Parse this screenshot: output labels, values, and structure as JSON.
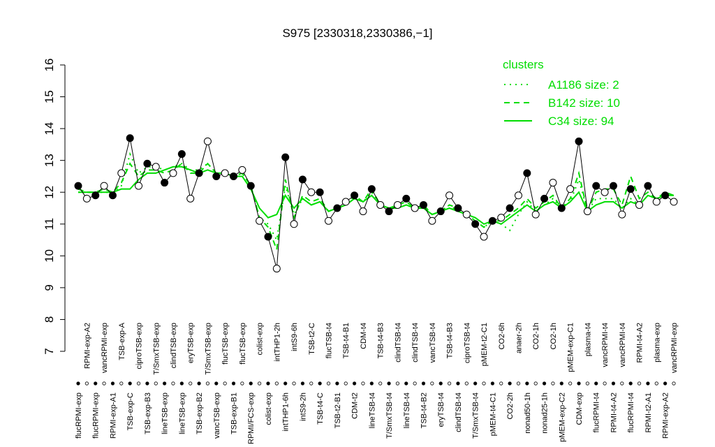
{
  "chart_data": {
    "type": "line",
    "title": "S975 [2330318,2330386,−1]",
    "legend_title": "clusters",
    "legend_position": "top-right",
    "ylim": [
      7,
      16
    ],
    "yticks": [
      7,
      8,
      9,
      10,
      11,
      12,
      13,
      14,
      15,
      16
    ],
    "color": "#000000",
    "categories": [
      "flucRPMI-exp",
      "RPMI-exp-A2",
      "flucRPMI-exp",
      "vancRPMI-exp",
      "RPMI-exp-A1",
      "TSB-exp-A",
      "TSB-exp-C",
      "ciproTSB-exp",
      "TSB-exp-B3",
      "T/SmxTSB-exp",
      "lineTSB-exp",
      "clindTSB-exp",
      "lineTSB-exp",
      "eryTSB-exp",
      "TSB-exp-B2",
      "T/SmxTSB-exp",
      "vancTSB-exp",
      "flucTSB-exp",
      "TSB-exp-B1",
      "flucTSB-exp",
      "RPMI/FCS-exp",
      "colist-exp",
      "colist-exp",
      "intTHP1-2h",
      "intTHP1-6h",
      "intS9-6h",
      "intS9-2h",
      "TSB-t2-C",
      "TSB-t4-C",
      "flucTSB-t4",
      "TSB-t2-B1",
      "TSB-t4-B1",
      "CDM-t2",
      "CDM-t4",
      "lineTSB-t4",
      "TSB-t4-B3",
      "T/SmxTSB-t4",
      "clindTSB-t4",
      "lineTSB-t4",
      "clindTSB-t4",
      "TSB-t4-B2",
      "vancTSB-t4",
      "eryTSB-t4",
      "TSB-t4-B3",
      "clindTSB-t4",
      "ciproTSB-t4",
      "T/SmxTSB-t4",
      "pMEM-t2-C1",
      "pMEM-t4-C1",
      "CO2-6h",
      "CO2-2h",
      "anaer-2h",
      "nonad50-1h",
      "CO2-1h",
      "nonad25-1h",
      "CO2-1h",
      "pMEM-exp-C2",
      "pMEM-exp-C1",
      "CDM-exp",
      "plasma-t4",
      "flucRPMI-t4",
      "vancRPMI-t4",
      "RPMI-t4-A2",
      "vancRPMI-t4",
      "flucRPMI-t4",
      "RPMI-t4-A2",
      "RPMI-t2-A1",
      "plasma-exp",
      "RPMI-exp-A2",
      "vancRPMI-exp"
    ],
    "values": [
      12.2,
      11.8,
      11.9,
      12.2,
      11.9,
      12.6,
      13.7,
      12.2,
      12.9,
      12.8,
      12.3,
      12.6,
      13.2,
      11.8,
      12.6,
      13.6,
      12.5,
      12.6,
      12.5,
      12.7,
      12.2,
      11.1,
      10.6,
      9.6,
      13.1,
      11.0,
      12.4,
      12.0,
      12.0,
      11.1,
      11.5,
      11.7,
      11.9,
      11.4,
      12.1,
      11.6,
      11.4,
      11.6,
      11.8,
      11.5,
      11.6,
      11.1,
      11.4,
      11.9,
      11.5,
      11.3,
      11.0,
      10.6,
      11.1,
      11.2,
      11.5,
      11.9,
      12.6,
      11.3,
      11.8,
      12.3,
      11.5,
      12.1,
      13.6,
      11.4,
      12.2,
      12.0,
      12.2,
      11.3,
      12.1,
      11.6,
      12.2,
      11.7,
      11.9,
      11.7
    ],
    "series": [
      {
        "name": "A1186 size: 2",
        "color": "#00dd00",
        "style": "dotted",
        "values": [
          12.0,
          12.0,
          12.0,
          12.0,
          12.0,
          12.2,
          13.2,
          12.6,
          12.8,
          12.8,
          12.7,
          12.8,
          12.9,
          12.7,
          12.7,
          12.9,
          12.6,
          12.6,
          12.5,
          12.6,
          12.2,
          11.2,
          11.0,
          10.5,
          12.2,
          11.3,
          11.8,
          11.6,
          11.7,
          11.4,
          11.5,
          11.6,
          11.8,
          11.7,
          12.0,
          11.6,
          11.5,
          11.5,
          11.6,
          11.5,
          11.5,
          11.3,
          11.4,
          11.6,
          11.4,
          11.3,
          11.1,
          10.9,
          11.1,
          11.0,
          10.8,
          11.3,
          11.7,
          11.4,
          11.6,
          11.8,
          11.5,
          11.7,
          12.4,
          11.4,
          11.8,
          11.8,
          11.8,
          11.5,
          11.8,
          11.6,
          11.9,
          11.8,
          11.9,
          11.9
        ]
      },
      {
        "name": "B142 size: 10",
        "color": "#00dd00",
        "style": "dashed",
        "values": [
          12.1,
          12.0,
          12.0,
          12.1,
          12.0,
          12.3,
          12.9,
          12.5,
          12.7,
          12.7,
          12.6,
          12.7,
          12.9,
          12.6,
          12.6,
          12.9,
          12.6,
          12.6,
          12.5,
          12.6,
          12.2,
          11.2,
          10.9,
          10.2,
          12.4,
          11.2,
          11.9,
          11.7,
          11.8,
          11.4,
          11.5,
          11.6,
          11.9,
          11.7,
          12.1,
          11.6,
          11.5,
          11.6,
          11.7,
          11.5,
          11.6,
          11.3,
          11.4,
          11.6,
          11.5,
          11.3,
          11.1,
          10.9,
          11.1,
          11.1,
          11.3,
          11.5,
          11.8,
          11.5,
          11.7,
          11.9,
          11.5,
          11.8,
          12.6,
          11.4,
          12.0,
          12.1,
          12.1,
          11.6,
          12.5,
          11.8,
          12.0,
          11.8,
          12.0,
          11.9
        ]
      },
      {
        "name": "C34 size: 94",
        "color": "#00dd00",
        "style": "solid",
        "values": [
          12.0,
          12.0,
          12.0,
          12.0,
          12.0,
          12.1,
          12.1,
          12.4,
          12.6,
          12.6,
          12.7,
          12.8,
          12.8,
          12.7,
          12.6,
          12.7,
          12.6,
          12.6,
          12.5,
          12.5,
          12.1,
          11.5,
          11.2,
          11.3,
          11.9,
          11.5,
          11.8,
          11.6,
          11.7,
          11.4,
          11.5,
          11.6,
          11.8,
          11.7,
          11.9,
          11.6,
          11.5,
          11.5,
          11.6,
          11.5,
          11.5,
          11.3,
          11.4,
          11.5,
          11.4,
          11.3,
          11.2,
          11.0,
          11.1,
          11.0,
          11.2,
          11.4,
          11.6,
          11.4,
          11.6,
          11.7,
          11.5,
          11.7,
          12.0,
          11.4,
          11.6,
          11.7,
          11.7,
          11.5,
          11.7,
          11.6,
          11.9,
          11.8,
          11.9,
          11.9
        ]
      }
    ]
  }
}
